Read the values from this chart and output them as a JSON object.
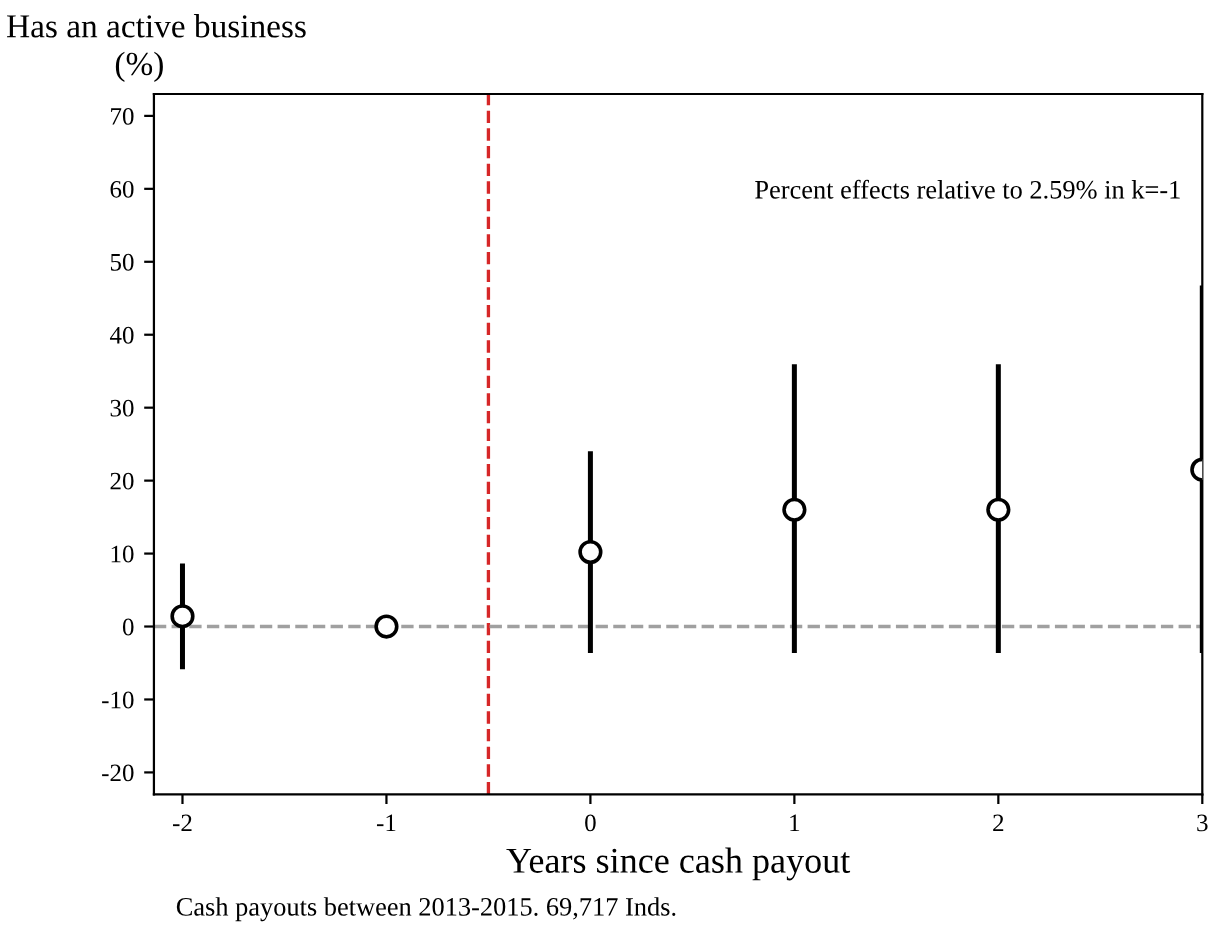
{
  "chart_data": {
    "type": "scatter",
    "title": "Has an active business",
    "ylabel": "(%)",
    "xlabel": "Years since cash payout",
    "x": [
      -2,
      -1,
      0,
      1,
      2,
      3
    ],
    "series": [
      {
        "color": "#000000",
        "values": [
          1.4,
          0,
          10.2,
          16,
          16,
          21.5
        ],
        "errors": [
          [
            -5.5,
            8.3
          ],
          null,
          [
            -3.3,
            23.7
          ],
          [
            -3.3,
            35.6
          ],
          [
            -3.3,
            35.6
          ],
          [
            -3.3,
            46.4
          ]
        ]
      }
    ],
    "marker": "circle",
    "xlim": [
      -2.14,
      3.0
    ],
    "xticks": [
      -2,
      -1,
      0,
      1,
      2,
      3
    ],
    "ylim": [
      -23,
      73
    ],
    "yticks": [
      -20,
      -10,
      0,
      10,
      20,
      30,
      40,
      50,
      60,
      70
    ],
    "ref_lines": [
      {
        "axis": "x",
        "value": -0.5,
        "color": "#d62728",
        "line_style": "dashed"
      },
      {
        "axis": "y",
        "value": 0,
        "color": "#a0a0a0",
        "line_style": "dashed"
      }
    ],
    "annotations": [
      "Percent effects relative to 2.59% in k=-1",
      "Cash payouts between 2013-2015. 69,717 Inds."
    ],
    "grid": false,
    "legend": false
  }
}
